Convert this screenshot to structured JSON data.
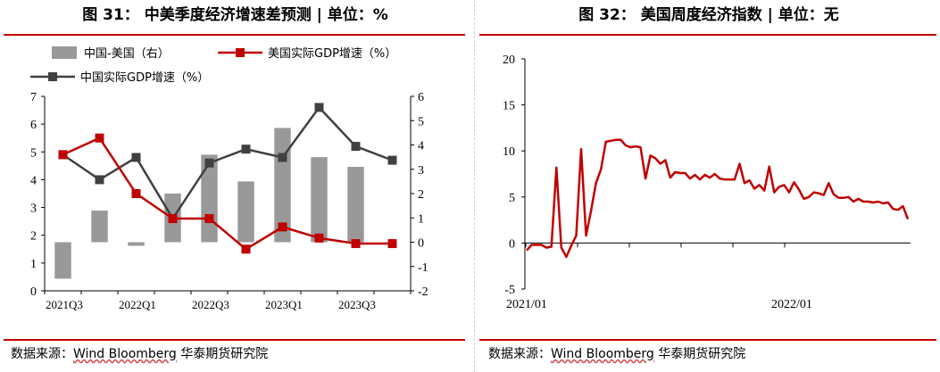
{
  "left": {
    "title": "图 31：   中美季度经济增速差预测 | 单位：%",
    "source_prefix": "数据来源：",
    "source_main": "Wind Bloomberg",
    "source_suffix": " 华泰期货研究院"
  },
  "right": {
    "title": "图 32：   美国周度经济指数 | 单位：无",
    "source_prefix": "数据来源：",
    "source_main": "Wind Bloomberg",
    "source_suffix": " 华泰期货研究院"
  },
  "colors": {
    "red": "#c00000",
    "dark": "#404040",
    "bar": "#999999",
    "rule": "#c00000"
  },
  "chart_data": [
    {
      "type": "bar+line",
      "categories": [
        "2021Q3",
        "2021Q4",
        "2022Q1",
        "2022Q2",
        "2022Q3",
        "2022Q4",
        "2023Q1",
        "2023Q2",
        "2023Q3",
        "2023Q4"
      ],
      "tick_labels": [
        "2021Q3",
        "2022Q1",
        "2022Q3",
        "2023Q1",
        "2023Q3"
      ],
      "series": [
        {
          "name": "中国-美国（右）",
          "kind": "bar",
          "axis": "right",
          "values": [
            -1.5,
            1.3,
            -0.15,
            2.0,
            3.6,
            2.5,
            4.7,
            3.5,
            3.1,
            null
          ]
        },
        {
          "name": "美国实际GDP增速（%）",
          "kind": "line",
          "axis": "left",
          "values": [
            4.9,
            5.5,
            3.5,
            2.6,
            2.6,
            1.5,
            2.3,
            1.9,
            1.7,
            1.7
          ]
        },
        {
          "name": "中国实际GDP增速（%）",
          "kind": "line",
          "axis": "left",
          "values": [
            4.9,
            4.0,
            4.8,
            2.6,
            4.6,
            5.1,
            4.8,
            6.6,
            5.2,
            4.7
          ]
        }
      ],
      "ylim_left": [
        0,
        7
      ],
      "yticks_left": [
        0,
        1,
        2,
        3,
        4,
        5,
        6,
        7
      ],
      "ylim_right": [
        -2,
        6
      ],
      "yticks_right": [
        -2,
        -1,
        0,
        1,
        2,
        3,
        4,
        5,
        6
      ],
      "legend": "top-left"
    },
    {
      "type": "line",
      "x_start": "2021/01",
      "tick_labels": [
        "2021/01",
        "2022/01"
      ],
      "series": [
        {
          "name": "",
          "values": [
            -0.8,
            -0.2,
            -0.2,
            -0.2,
            -0.5,
            -0.4,
            8.2,
            -0.5,
            -1.5,
            -0.3,
            0.8,
            10.2,
            0.8,
            3.5,
            6.5,
            8.0,
            11.0,
            11.1,
            11.2,
            11.2,
            10.6,
            10.4,
            10.5,
            10.4,
            7.0,
            9.5,
            9.2,
            8.6,
            9.0,
            7.1,
            7.7,
            7.6,
            7.6,
            7.0,
            7.4,
            6.9,
            7.4,
            7.1,
            7.5,
            7.0,
            6.9,
            6.9,
            6.9,
            8.6,
            6.5,
            6.8,
            5.9,
            6.3,
            5.7,
            8.3,
            5.5,
            6.1,
            6.3,
            5.5,
            6.6,
            5.8,
            4.8,
            5.0,
            5.5,
            5.4,
            5.2,
            6.5,
            5.3,
            4.9,
            4.9,
            5.0,
            4.5,
            4.8,
            4.5,
            4.5,
            4.4,
            4.5,
            4.3,
            4.4,
            3.7,
            3.6,
            4.0,
            2.6
          ]
        }
      ],
      "ylim": [
        -5,
        20
      ],
      "yticks": [
        -5,
        0,
        5,
        10,
        15,
        20
      ]
    }
  ]
}
